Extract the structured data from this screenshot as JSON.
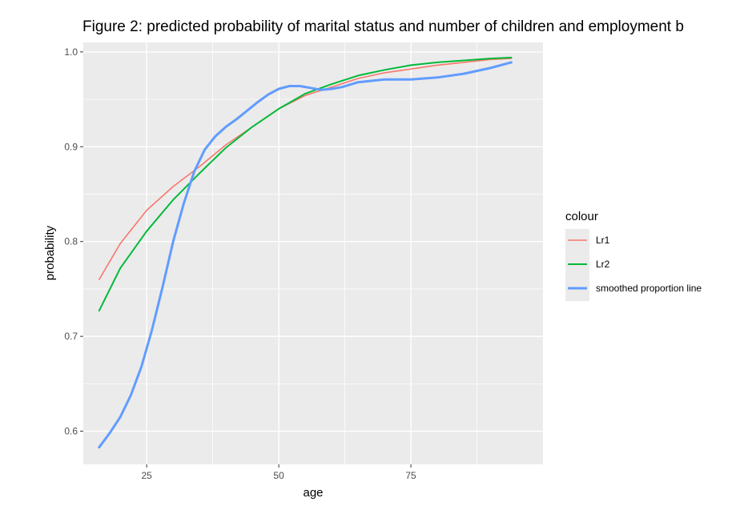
{
  "chart_data": {
    "type": "line",
    "title": "Figure 2: predicted probability of marital status and number of children and employment b",
    "xlabel": "age",
    "ylabel": "probability",
    "xlim": [
      13,
      100
    ],
    "ylim": [
      0.565,
      1.01
    ],
    "x_ticks": [
      25,
      50,
      75
    ],
    "x_tick_labels": [
      "25",
      "50",
      "75"
    ],
    "y_ticks": [
      0.6,
      0.7,
      0.8,
      0.9,
      1.0
    ],
    "y_tick_labels": [
      "0.6",
      "0.7",
      "0.8",
      "0.9",
      "1.0"
    ],
    "grid": true,
    "legend": {
      "title": "colour",
      "position": "right"
    },
    "series": [
      {
        "name": "Lr1",
        "color": "#F8766D",
        "x": [
          16,
          20,
          25,
          30,
          35,
          40,
          45,
          50,
          55,
          60,
          65,
          70,
          75,
          80,
          85,
          90,
          94
        ],
        "y": [
          0.76,
          0.798,
          0.833,
          0.858,
          0.879,
          0.902,
          0.921,
          0.94,
          0.954,
          0.963,
          0.972,
          0.978,
          0.982,
          0.986,
          0.989,
          0.992,
          0.993
        ]
      },
      {
        "name": "Lr2",
        "color": "#00BA38",
        "x": [
          16,
          20,
          25,
          30,
          35,
          40,
          45,
          50,
          55,
          60,
          65,
          70,
          75,
          80,
          85,
          90,
          94
        ],
        "y": [
          0.727,
          0.772,
          0.811,
          0.844,
          0.872,
          0.899,
          0.921,
          0.94,
          0.956,
          0.966,
          0.975,
          0.981,
          0.986,
          0.989,
          0.991,
          0.993,
          0.994
        ]
      },
      {
        "name": "smoothed proportion line",
        "color": "#619CFF",
        "x": [
          16,
          18,
          20,
          22,
          24,
          26,
          28,
          30,
          32,
          34,
          36,
          38,
          40,
          42,
          44,
          46,
          48,
          50,
          52,
          54,
          56,
          58,
          60,
          62,
          65,
          70,
          75,
          80,
          85,
          90,
          94
        ],
        "y": [
          0.583,
          0.598,
          0.615,
          0.638,
          0.668,
          0.707,
          0.752,
          0.8,
          0.84,
          0.874,
          0.897,
          0.911,
          0.921,
          0.929,
          0.938,
          0.947,
          0.955,
          0.961,
          0.964,
          0.964,
          0.962,
          0.96,
          0.961,
          0.963,
          0.968,
          0.971,
          0.971,
          0.973,
          0.977,
          0.983,
          0.989
        ]
      }
    ]
  }
}
